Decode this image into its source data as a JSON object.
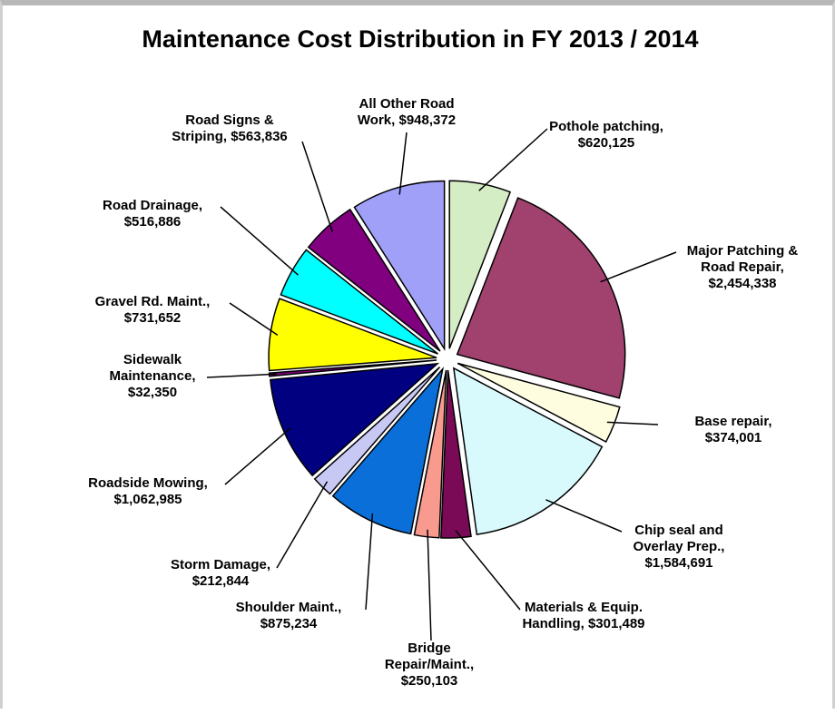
{
  "chart_data": {
    "type": "pie",
    "title": "Maintenance Cost Distribution in FY 2013 / 2014",
    "categories": [
      "Pothole patching,",
      "Major Patching & Road Repair,",
      "Base repair,",
      "Chip seal and Overlay Prep.,",
      "Materials & Equip. Handling,",
      "Bridge Repair/Maint.,",
      "Shoulder Maint.,",
      "Storm Damage,",
      "Roadside Mowing,",
      "Sidewalk Maintenance,",
      "Gravel Rd. Maint.,",
      "Road Drainage,",
      "Road Signs & Striping,",
      "All Other Road Work,"
    ],
    "values": [
      620125,
      2454338,
      374001,
      1584691,
      301489,
      250103,
      875234,
      212844,
      1062985,
      32350,
      731652,
      516886,
      563836,
      948372
    ],
    "value_labels": [
      "$620,125",
      "$2,454,338",
      "$374,001",
      "$1,584,691",
      "$301,489",
      "$250,103",
      "$875,234",
      "$212,844",
      "$1,062,985",
      "$32,350",
      "$731,652",
      "$516,886",
      "$563,836",
      "$948,372"
    ],
    "colors": [
      "#d4edc4",
      "#a0416e",
      "#fefde0",
      "#d8fafc",
      "#7b0a56",
      "#f99a8f",
      "#0a6fd8",
      "#c8c8f4",
      "#000080",
      "#800080",
      "#ffff00",
      "#00ffff",
      "#800080",
      "#a0a0f8"
    ]
  }
}
